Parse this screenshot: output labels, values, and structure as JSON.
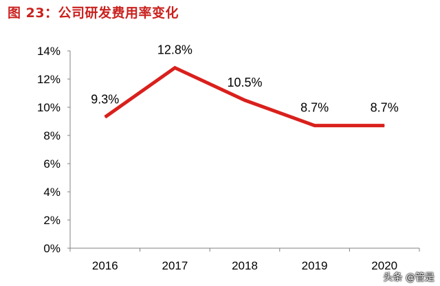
{
  "header": {
    "title": "图 23：公司研发费用率变化"
  },
  "watermark": "头条 @管是",
  "chart_data": {
    "type": "line",
    "title": "图 23：公司研发费用率变化",
    "categories": [
      "2016",
      "2017",
      "2018",
      "2019",
      "2020"
    ],
    "series": [
      {
        "values": [
          9.3,
          12.8,
          10.5,
          8.7,
          8.7
        ],
        "data_labels": [
          "9.3%",
          "12.8%",
          "10.5%",
          "8.7%",
          "8.7%"
        ],
        "color": "#d9201c"
      }
    ],
    "y_ticks": [
      "0%",
      "2%",
      "4%",
      "6%",
      "8%",
      "10%",
      "12%",
      "14%"
    ],
    "ylim": [
      0,
      14
    ],
    "grid": false,
    "legend": "none",
    "xlabel": "",
    "ylabel": ""
  }
}
